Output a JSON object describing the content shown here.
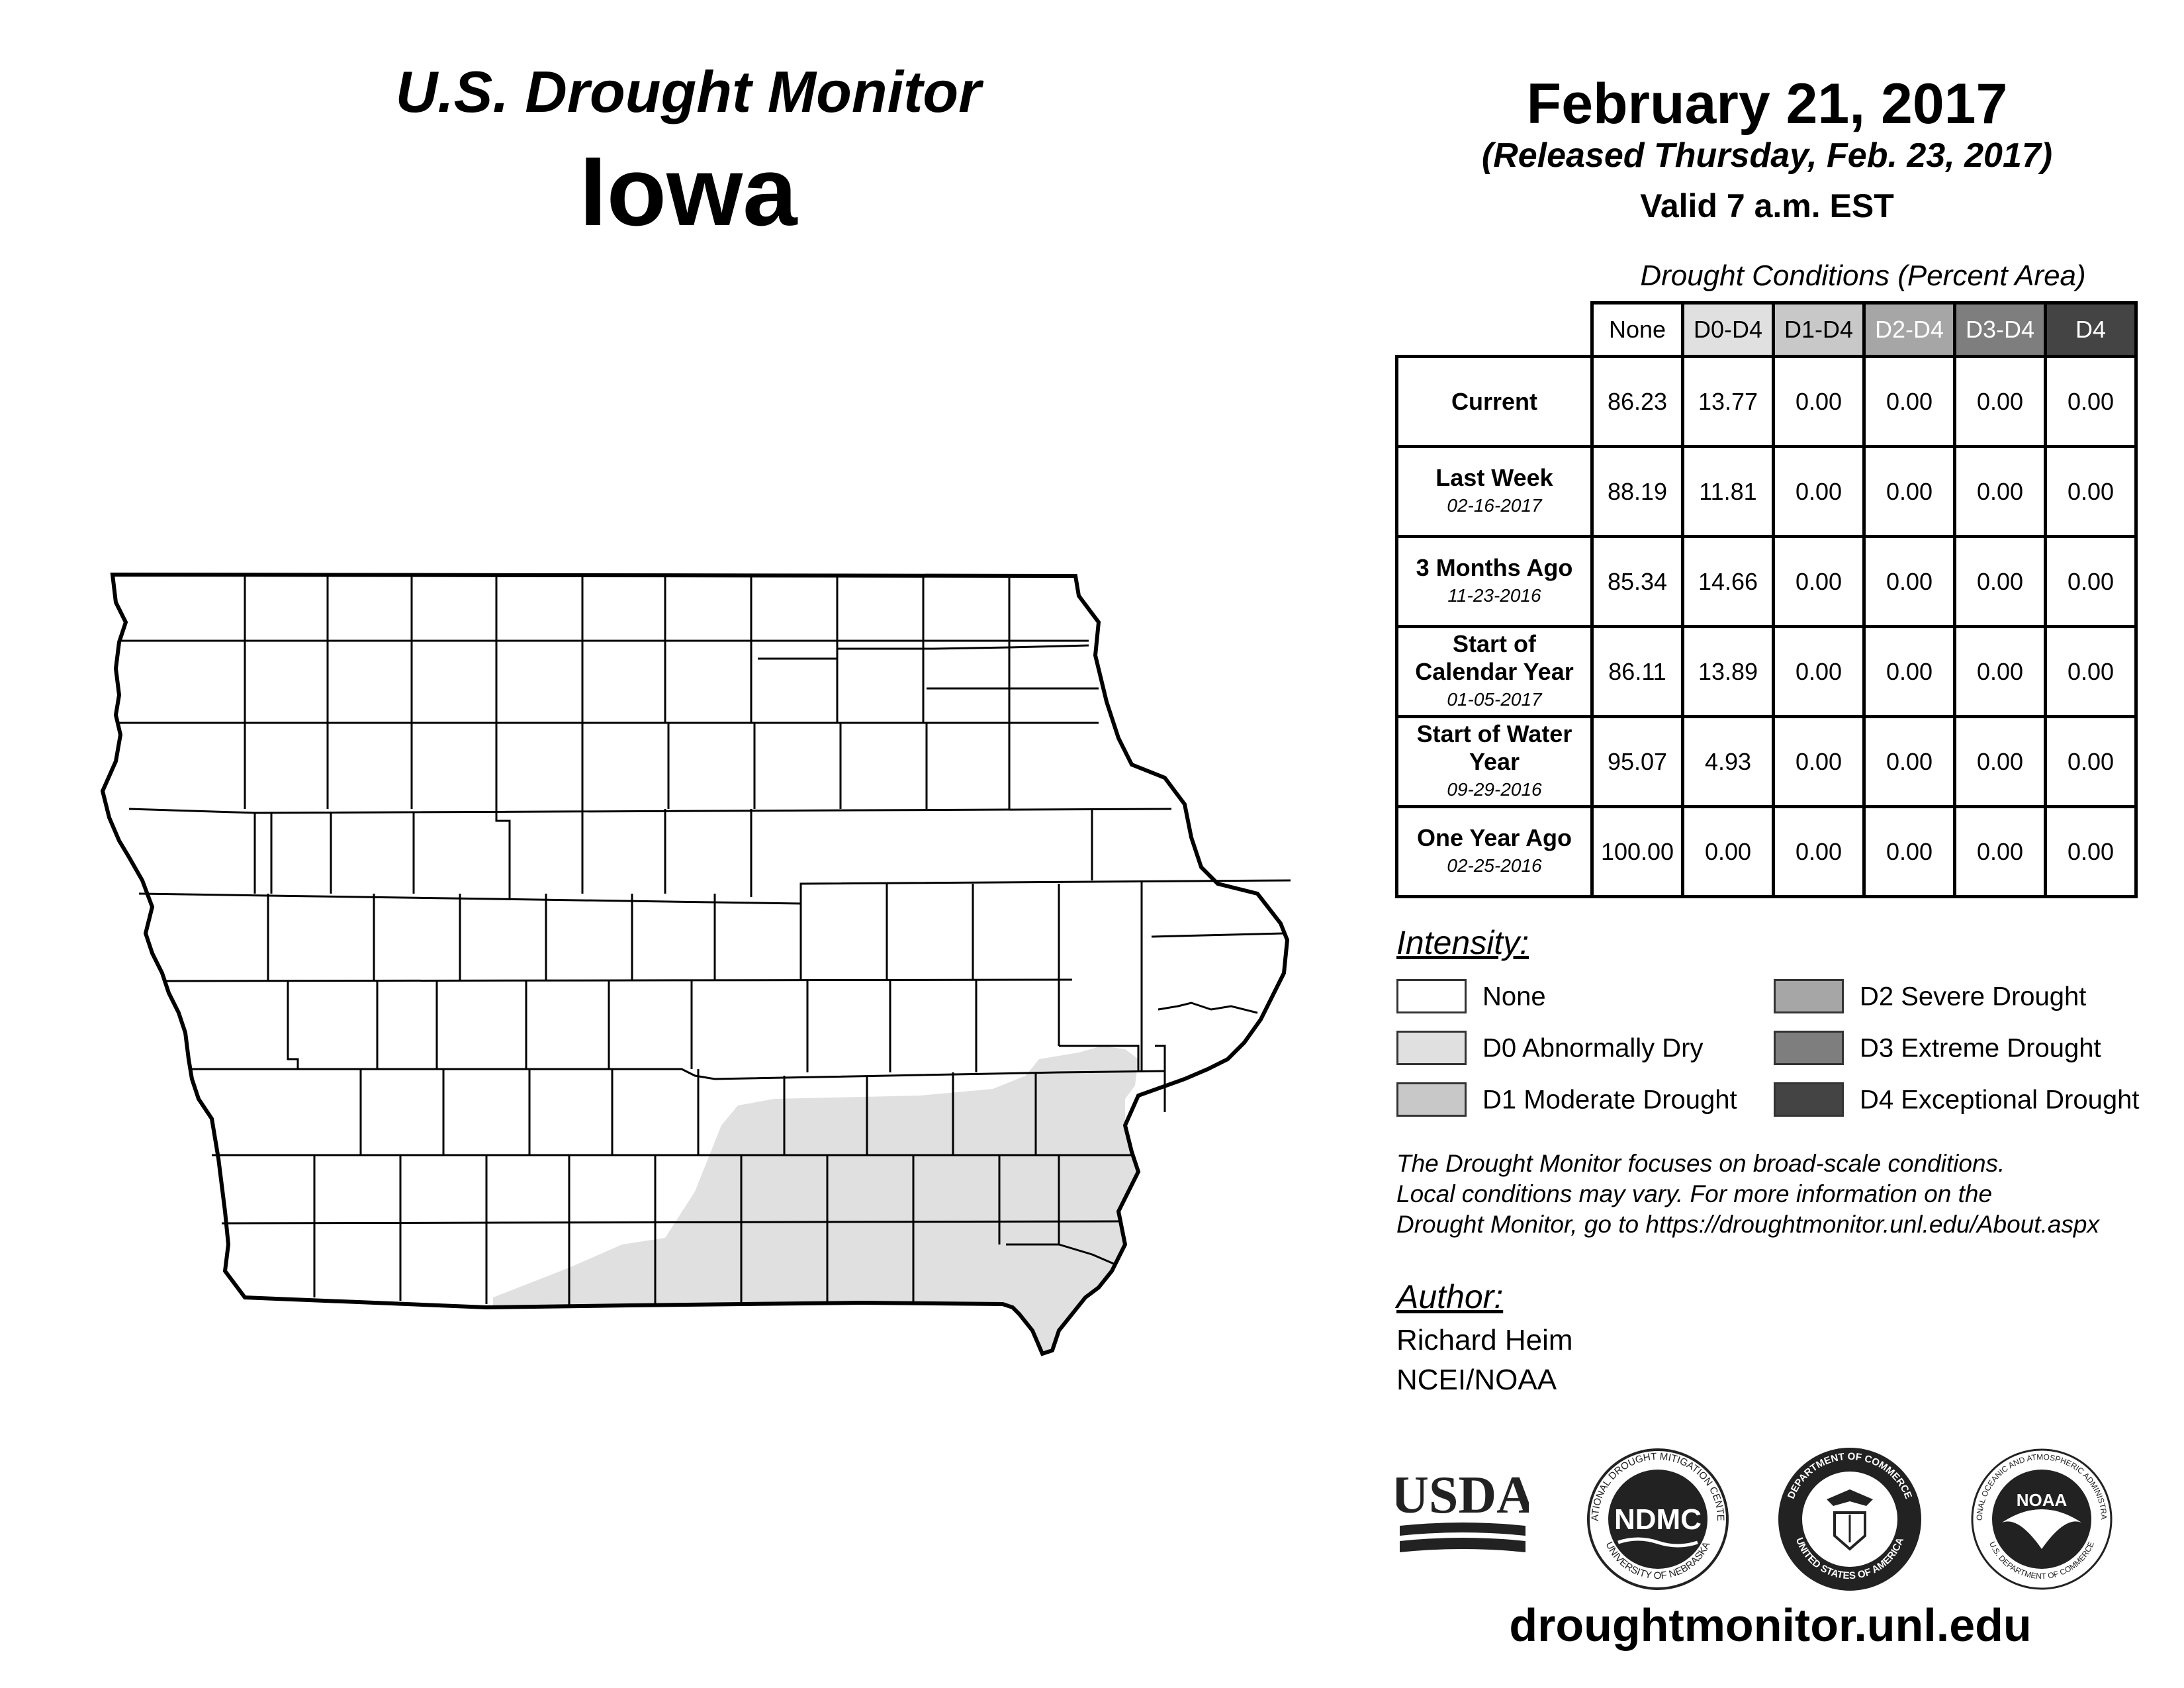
{
  "header": {
    "title": "U.S. Drought Monitor",
    "state": "Iowa",
    "date": "February 21, 2017",
    "released": "(Released Thursday, Feb. 23, 2017)",
    "valid": "Valid 7 a.m. EST"
  },
  "table": {
    "caption": "Drought Conditions (Percent Area)",
    "columns": [
      "None",
      "D0-D4",
      "D1-D4",
      "D2-D4",
      "D3-D4",
      "D4"
    ],
    "rows": [
      {
        "label": "Current",
        "date": "",
        "values": [
          "86.23",
          "13.77",
          "0.00",
          "0.00",
          "0.00",
          "0.00"
        ]
      },
      {
        "label": "Last Week",
        "date": "02-16-2017",
        "values": [
          "88.19",
          "11.81",
          "0.00",
          "0.00",
          "0.00",
          "0.00"
        ]
      },
      {
        "label": "3 Months Ago",
        "date": "11-23-2016",
        "values": [
          "85.34",
          "14.66",
          "0.00",
          "0.00",
          "0.00",
          "0.00"
        ]
      },
      {
        "label": "Start of Calendar Year",
        "date": "01-05-2017",
        "values": [
          "86.11",
          "13.89",
          "0.00",
          "0.00",
          "0.00",
          "0.00"
        ]
      },
      {
        "label": "Start of Water Year",
        "date": "09-29-2016",
        "values": [
          "95.07",
          "4.93",
          "0.00",
          "0.00",
          "0.00",
          "0.00"
        ]
      },
      {
        "label": "One Year Ago",
        "date": "02-25-2016",
        "values": [
          "100.00",
          "0.00",
          "0.00",
          "0.00",
          "0.00",
          "0.00"
        ]
      }
    ]
  },
  "legend": {
    "title": "Intensity:",
    "items": [
      {
        "label": "None",
        "color": "#ffffff"
      },
      {
        "label": "D0 Abnormally Dry",
        "color": "#e0e0e0"
      },
      {
        "label": "D1 Moderate Drought",
        "color": "#c8c8c8"
      },
      {
        "label": "D2 Severe Drought",
        "color": "#a6a6a6"
      },
      {
        "label": "D3 Extreme Drought",
        "color": "#7e7e7e"
      },
      {
        "label": "D4 Exceptional Drought",
        "color": "#444444"
      }
    ]
  },
  "note": {
    "line1": "The Drought Monitor focuses on broad-scale conditions.",
    "line2": "Local conditions may vary. For more information on the",
    "line3": "Drought Monitor, go to https://droughtmonitor.unl.edu/About.aspx"
  },
  "author": {
    "title": "Author:",
    "name": "Richard Heim",
    "org": "NCEI/NOAA"
  },
  "logos": {
    "usda": "USDA",
    "ndmc": "NDMC",
    "ndmc_ring_top": "NATIONAL DROUGHT MITIGATION CENTER",
    "ndmc_ring_bottom": "UNIVERSITY OF NEBRASKA",
    "doc_ring_top": "DEPARTMENT OF COMMERCE",
    "doc_ring_bottom": "UNITED STATES OF AMERICA",
    "noaa": "NOAA",
    "noaa_ring_top": "NATIONAL OCEANIC AND ATMOSPHERIC ADMINISTRATION",
    "noaa_ring_bottom": "U.S. DEPARTMENT OF COMMERCE"
  },
  "footer": {
    "url": "droughtmonitor.unl.edu"
  }
}
